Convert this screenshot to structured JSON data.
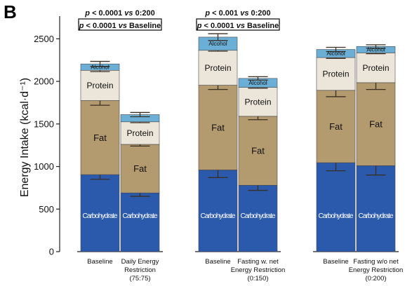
{
  "panel_label": "B",
  "chart_data": {
    "type": "bar",
    "stacked": true,
    "ylabel": "Energy Intake (kcal·d⁻¹)",
    "ylim": [
      0,
      2750
    ],
    "yticks": [
      0,
      500,
      1000,
      1500,
      2000,
      2500
    ],
    "groups": [
      {
        "bars": [
          0,
          1
        ]
      },
      {
        "bars": [
          2,
          3
        ]
      },
      {
        "bars": [
          4,
          5
        ]
      }
    ],
    "bars": [
      {
        "label": [
          "Baseline"
        ],
        "segments": {
          "carbohydrate": 905,
          "fat": 870,
          "protein": 355,
          "alcohol": 75
        },
        "errors": {
          "carbohydrate": 55,
          "fat": 55,
          "protein": 15,
          "alcohol": 30
        }
      },
      {
        "label": [
          "Daily Energy",
          "Restriction",
          "(75:75)"
        ],
        "segments": {
          "carbohydrate": 690,
          "fat": 570,
          "protein": 265,
          "alcohol": 85
        },
        "errors": {
          "carbohydrate": 40,
          "fat": 20,
          "protein": 10,
          "alcohol": 25
        }
      },
      {
        "label": [
          "Baseline"
        ],
        "segments": {
          "carbohydrate": 960,
          "fat": 995,
          "protein": 410,
          "alcohol": 155
        },
        "errors": {
          "carbohydrate": 90,
          "fat": 50,
          "protein": 10,
          "alcohol": 40
        }
      },
      {
        "label": [
          "Fasting w. net",
          "Energy Restriction",
          "(0:150)"
        ],
        "segments": {
          "carbohydrate": 780,
          "fat": 810,
          "protein": 340,
          "alcohol": 105
        },
        "errors": {
          "carbohydrate": 60,
          "fat": 40,
          "protein": 10,
          "alcohol": 20
        }
      },
      {
        "label": [
          "Baseline"
        ],
        "segments": {
          "carbohydrate": 1045,
          "fat": 850,
          "protein": 385,
          "alcohol": 95
        },
        "errors": {
          "carbohydrate": 95,
          "fat": 75,
          "protein": 10,
          "alcohol": 25
        }
      },
      {
        "label": [
          "Fasting w/o net",
          "Energy Restriction",
          "(0:200)"
        ],
        "segments": {
          "carbohydrate": 1010,
          "fat": 975,
          "protein": 350,
          "alcohol": 75
        },
        "errors": {
          "carbohydrate": 110,
          "fat": 80,
          "protein": 10,
          "alcohol": 20
        }
      }
    ],
    "segment_labels": {
      "carbohydrate": "Carbohydrate",
      "fat": "Fat",
      "protein": "Protein",
      "alcohol": "Alcohol"
    },
    "segment_label_show": [
      {
        "carbohydrate": true,
        "fat": true,
        "protein": true,
        "alcohol": true
      },
      {
        "carbohydrate": true,
        "fat": true,
        "protein": true,
        "alcohol": false
      },
      {
        "carbohydrate": true,
        "fat": true,
        "protein": true,
        "alcohol": true
      },
      {
        "carbohydrate": true,
        "fat": true,
        "protein": true,
        "alcohol": true
      },
      {
        "carbohydrate": true,
        "fat": true,
        "protein": true,
        "alcohol": true
      },
      {
        "carbohydrate": true,
        "fat": true,
        "protein": true,
        "alcohol": true
      }
    ],
    "colors": {
      "carbohydrate": "#2b5aad",
      "fat": "#b39a6f",
      "protein": "#ece5da",
      "alcohol": "#6baed6",
      "error": "#3a2f24"
    },
    "annotations": [
      {
        "group": 0,
        "lines": [
          {
            "p": "p",
            "rest": " < 0.0001 ",
            "vs": "vs",
            "ref": " 0:200"
          },
          {
            "p": "p",
            "rest": " < 0.0001 ",
            "vs": "vs",
            "ref": " Baseline"
          }
        ]
      },
      {
        "group": 1,
        "lines": [
          {
            "p": "p",
            "rest": " < 0.001 ",
            "vs": "vs",
            "ref": " 0:200"
          },
          {
            "p": "p",
            "rest": " < 0.0001 ",
            "vs": "vs",
            "ref": " Baseline"
          }
        ]
      }
    ]
  }
}
